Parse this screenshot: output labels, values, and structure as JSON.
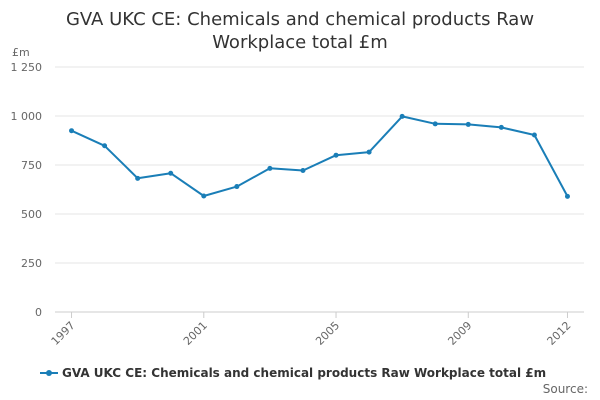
{
  "title_lines": [
    "GVA UKC CE: Chemicals and chemical products Raw",
    "Workplace total £m"
  ],
  "colors": {
    "series": "#1a7eb7",
    "grid": "#e6e6e6",
    "axis": "#cccccc"
  },
  "source_label": "Source:",
  "chart_data": {
    "type": "line",
    "title": "GVA UKC CE: Chemicals and chemical products Raw Workplace total £m",
    "ylabel": "£m",
    "ylim": [
      0,
      1250
    ],
    "yticks": [
      0,
      250,
      500,
      750,
      1000,
      1250
    ],
    "ytick_labels": [
      "0",
      "250",
      "500",
      "750",
      "1 000",
      "1 250"
    ],
    "xticks": [
      1997,
      2001,
      2005,
      2009,
      2012
    ],
    "grid": true,
    "legend": "bottom",
    "series": [
      {
        "name": "GVA UKC CE: Chemicals and chemical products Raw Workplace total £m",
        "x": [
          1997,
          1998,
          1999,
          2000,
          2001,
          2002,
          2003,
          2004,
          2005,
          2006,
          2007,
          2008,
          2009,
          2010,
          2011,
          2012
        ],
        "values": [
          925,
          848,
          682,
          708,
          592,
          640,
          733,
          722,
          800,
          816,
          998,
          960,
          957,
          942,
          903,
          590
        ]
      }
    ]
  }
}
